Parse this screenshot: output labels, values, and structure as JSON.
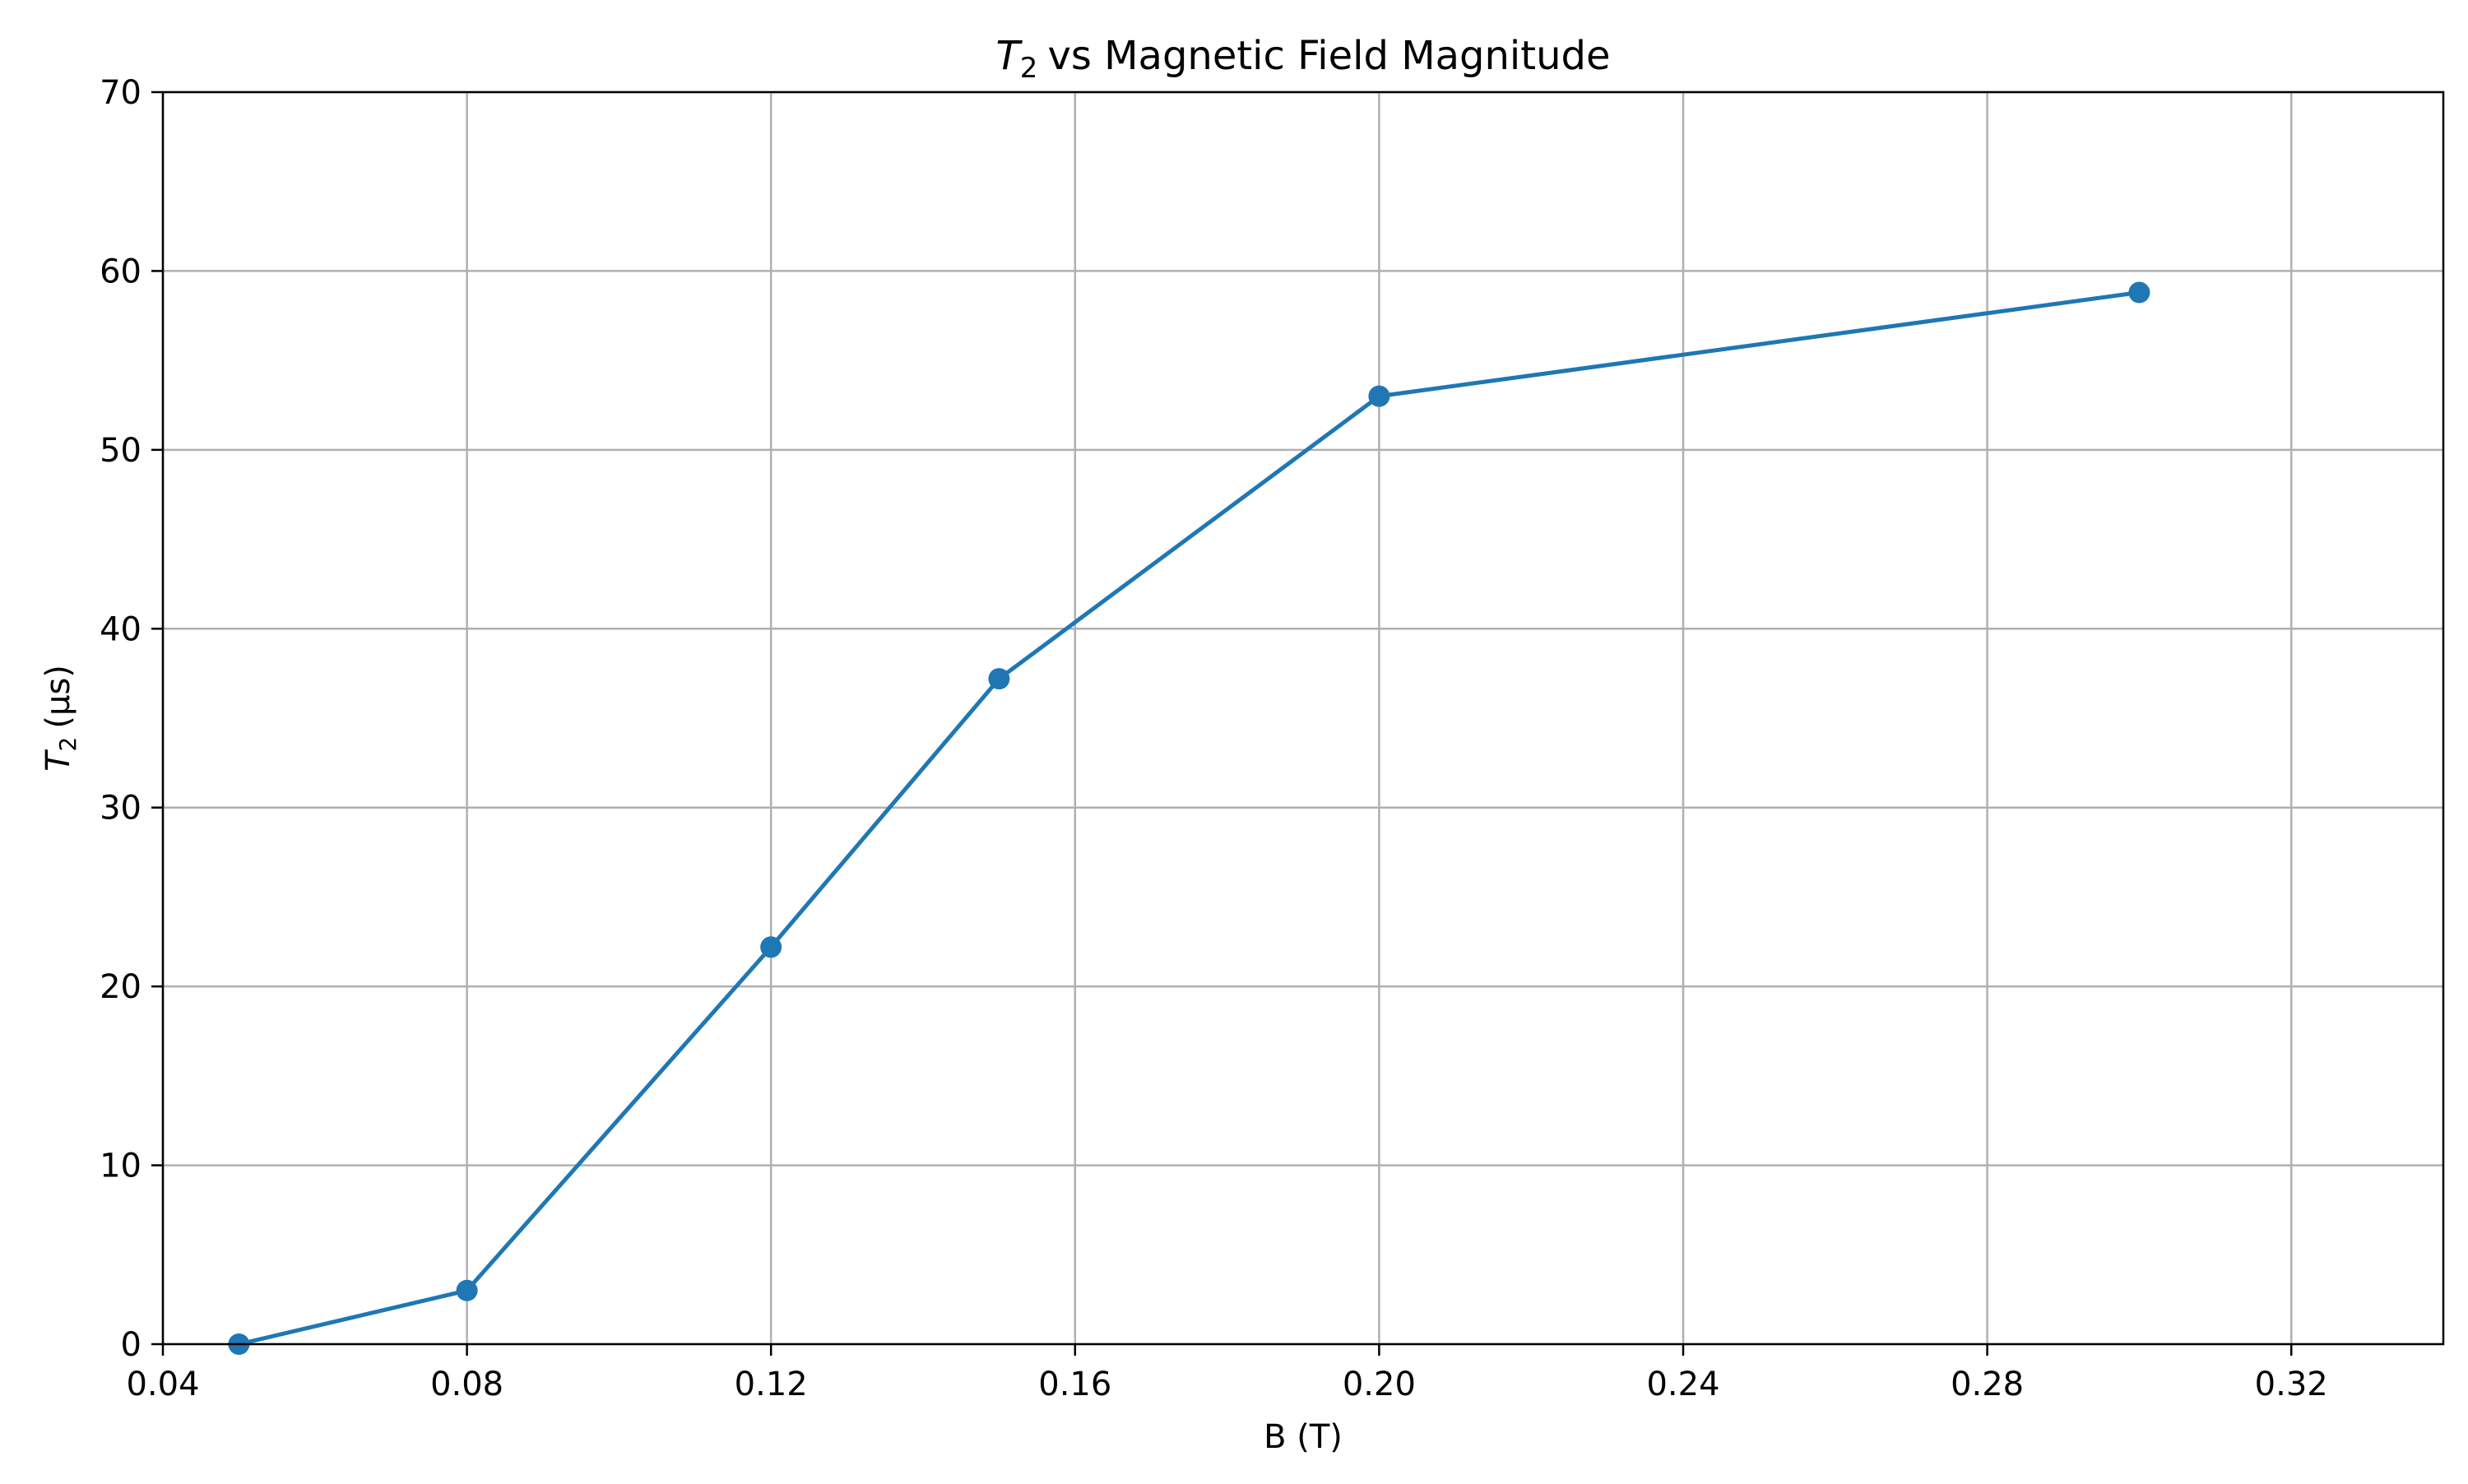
{
  "chart_data": {
    "type": "line",
    "title": "vs Magnetic Field Magnitude",
    "title_symbol": "T",
    "title_subscript": "2",
    "xlabel": "B (T)",
    "ylabel_symbol": "T",
    "ylabel_subscript": "2",
    "ylabel_unit": "(μs)",
    "xlim": [
      0.04,
      0.34
    ],
    "ylim": [
      0,
      70
    ],
    "xticks": [
      0.04,
      0.08,
      0.12,
      0.16,
      0.2,
      0.24,
      0.28,
      0.32
    ],
    "xtick_labels": [
      "0.04",
      "0.08",
      "0.12",
      "0.16",
      "0.20",
      "0.24",
      "0.28",
      "0.32"
    ],
    "yticks": [
      0,
      10,
      20,
      30,
      40,
      50,
      60,
      70
    ],
    "ytick_labels": [
      "0",
      "10",
      "20",
      "30",
      "40",
      "50",
      "60",
      "70"
    ],
    "grid": true,
    "legend": "none",
    "series": [
      {
        "color": "#1f77b4",
        "marker": "circle",
        "x": [
          0.05,
          0.08,
          0.12,
          0.15,
          0.2,
          0.3
        ],
        "y": [
          0.0,
          3.0,
          22.2,
          37.2,
          53.0,
          58.8
        ]
      }
    ]
  }
}
